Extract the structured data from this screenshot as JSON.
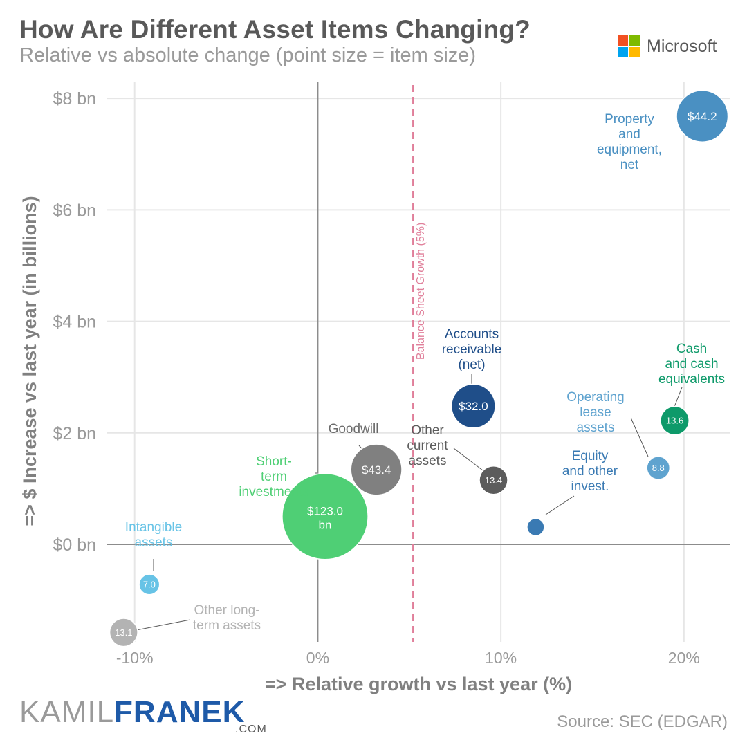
{
  "header": {
    "title": "How Are Different Asset Items Changing?",
    "subtitle": "Relative vs absolute change (point size = item size)",
    "company": "Microsoft",
    "logo_colors": [
      "#f25022",
      "#7fba00",
      "#00a4ef",
      "#ffb900"
    ]
  },
  "footer": {
    "brand_part1": "KAMIL",
    "brand_part2": "FRANEK",
    "brand_suffix": ".COM",
    "source": "Source: SEC (EDGAR)"
  },
  "chart_data": {
    "type": "scatter",
    "xlabel": "=> Relative growth vs last year (%)",
    "ylabel": "=> $ Increase vs last year (in billions)",
    "xlim": [
      -11.5,
      22.5
    ],
    "ylim": [
      -1.75,
      8.3
    ],
    "x_ticks": [
      -10,
      0,
      10,
      20
    ],
    "x_tick_labels": [
      "-10%",
      "0%",
      "10%",
      "20%"
    ],
    "y_ticks": [
      0,
      2,
      4,
      6,
      8
    ],
    "y_tick_labels": [
      "$0 bn",
      "$2 bn",
      "$4 bn",
      "$6 bn",
      "$8 bn"
    ],
    "grid": true,
    "reference_line": {
      "x": 5.2,
      "label": "Balance Sheet Growth (5%)",
      "color": "#e07f9a"
    },
    "points": [
      {
        "name": "Property and equipment, net",
        "label_lines": [
          "Property",
          "and",
          "equipment,",
          "net"
        ],
        "x": 21.0,
        "y": 7.68,
        "size": 44.2,
        "value_label": "$44.2",
        "value_label_line2": "",
        "color": "#4a90c2",
        "label_color": "#4a90c2"
      },
      {
        "name": "Accounts receivable (net)",
        "label_lines": [
          "Accounts",
          "receivable",
          "(net)"
        ],
        "x": 8.5,
        "y": 2.48,
        "size": 32.0,
        "value_label": "$32.0",
        "value_label_line2": "",
        "color": "#1f4e89",
        "label_color": "#1f4e89"
      },
      {
        "name": "Cash and cash equivalents",
        "label_lines": [
          "Cash",
          "and cash",
          "equivalents"
        ],
        "x": 19.5,
        "y": 2.22,
        "size": 13.6,
        "value_label": "13.6",
        "value_label_line2": "",
        "color": "#0e9a6a",
        "label_color": "#0e9a6a"
      },
      {
        "name": "Operating lease assets",
        "label_lines": [
          "Operating",
          "lease",
          "assets"
        ],
        "x": 18.6,
        "y": 1.37,
        "size": 8.8,
        "value_label": "8.8",
        "value_label_line2": "",
        "color": "#5fa3cf",
        "label_color": "#5fa3cf"
      },
      {
        "name": "Goodwill",
        "label_lines": [
          "Goodwill"
        ],
        "x": 3.2,
        "y": 1.34,
        "size": 43.4,
        "value_label": "$43.4",
        "value_label_line2": "",
        "color": "#808080",
        "label_color": "#6b6b6b"
      },
      {
        "name": "Other current assets",
        "label_lines": [
          "Other",
          "current",
          "assets"
        ],
        "x": 9.6,
        "y": 1.15,
        "size": 13.4,
        "value_label": "13.4",
        "value_label_line2": "",
        "color": "#5c5c5c",
        "label_color": "#5c5c5c"
      },
      {
        "name": "Equity and other invest.",
        "label_lines": [
          "Equity",
          "and other",
          "invest."
        ],
        "x": 11.9,
        "y": 0.31,
        "size": 5.0,
        "value_label": "",
        "value_label_line2": "",
        "color": "#3a7ab3",
        "label_color": "#3a7ab3"
      },
      {
        "name": "Short-term investments",
        "label_lines": [
          "Short-",
          "term",
          "investments"
        ],
        "x": 0.4,
        "y": 0.5,
        "size": 123.0,
        "value_label": "$123.0",
        "value_label_line2": "bn",
        "color": "#4fcf75",
        "label_color": "#4fcf75"
      },
      {
        "name": "Intangible assets",
        "label_lines": [
          "Intangible",
          "assets"
        ],
        "x": -9.2,
        "y": -0.72,
        "size": 7.0,
        "value_label": "7.0",
        "value_label_line2": "",
        "color": "#67c3e6",
        "label_color": "#67c3e6"
      },
      {
        "name": "Other long-term assets",
        "label_lines": [
          "Other long-",
          "term assets"
        ],
        "x": -10.6,
        "y": -1.58,
        "size": 13.1,
        "value_label": "13.1",
        "value_label_line2": "",
        "color": "#b3b3b3",
        "label_color": "#b3b3b3"
      }
    ]
  }
}
